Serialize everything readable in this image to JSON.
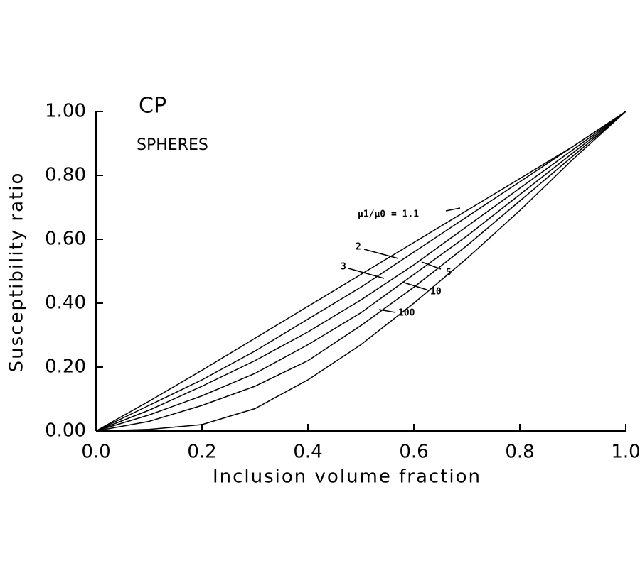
{
  "chart_data": {
    "type": "line",
    "title": "CP",
    "subtitle": "SPHERES",
    "x_label": "Inclusion volume fraction",
    "y_label": "Susceptibility ratio",
    "x": [
      0,
      0.1,
      0.2,
      0.3,
      0.4,
      0.5,
      0.6,
      0.7,
      0.8,
      0.9,
      1.0
    ],
    "series": [
      {
        "name": "μ1/μ0 = 1.1",
        "color": "#000000",
        "values": [
          0,
          0.093,
          0.19,
          0.29,
          0.39,
          0.49,
          0.59,
          0.69,
          0.79,
          0.89,
          1.0
        ]
      },
      {
        "name": "2",
        "color": "#000000",
        "values": [
          0,
          0.08,
          0.16,
          0.25,
          0.35,
          0.45,
          0.56,
          0.67,
          0.78,
          0.89,
          1.0
        ]
      },
      {
        "name": "3",
        "color": "#000000",
        "values": [
          0,
          0.065,
          0.14,
          0.22,
          0.31,
          0.41,
          0.52,
          0.64,
          0.76,
          0.88,
          1.0
        ]
      },
      {
        "name": "5",
        "color": "#000000",
        "values": [
          0,
          0.05,
          0.11,
          0.18,
          0.27,
          0.37,
          0.49,
          0.61,
          0.74,
          0.87,
          1.0
        ]
      },
      {
        "name": "10",
        "color": "#000000",
        "values": [
          0,
          0.03,
          0.08,
          0.14,
          0.22,
          0.33,
          0.45,
          0.58,
          0.72,
          0.86,
          1.0
        ]
      },
      {
        "name": "100",
        "color": "#000000",
        "values": [
          0,
          0.005,
          0.02,
          0.07,
          0.16,
          0.27,
          0.4,
          0.54,
          0.69,
          0.85,
          1.0
        ]
      }
    ],
    "xlim": [
      0,
      1.0
    ],
    "ylim": [
      0,
      1.0
    ],
    "xticks": [
      {
        "value": 0,
        "label": "0.0"
      },
      0.2,
      0.4,
      0.6,
      0.8,
      {
        "value": 1.0,
        "label": "1.0"
      }
    ],
    "yticks": [
      {
        "value": 0,
        "label": "0.00"
      },
      {
        "value": 0.2,
        "label": "0.20"
      },
      {
        "value": 0.4,
        "label": "0.40"
      },
      {
        "value": 0.6,
        "label": "0.60"
      },
      {
        "value": 0.8,
        "label": "0.80"
      },
      {
        "value": 1.0,
        "label": "1.00"
      }
    ],
    "grid": false
  }
}
